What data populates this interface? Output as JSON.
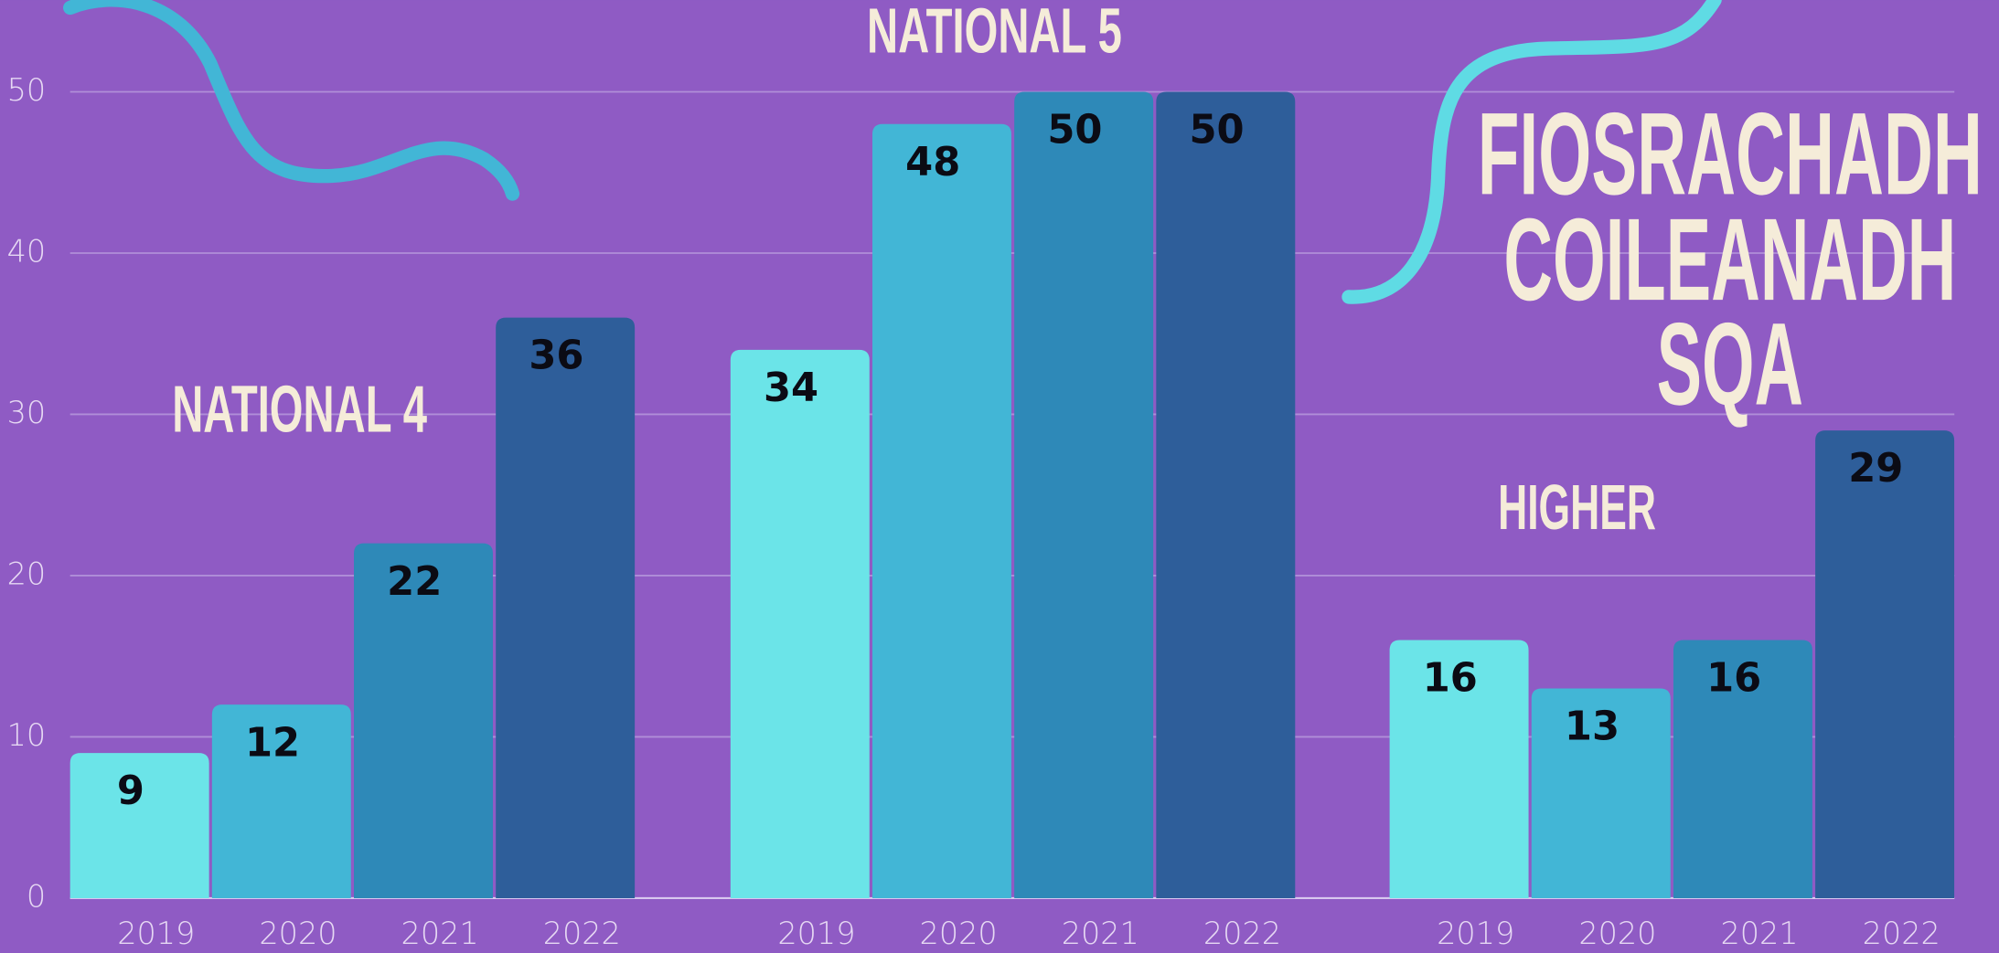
{
  "chart_data": {
    "type": "bar",
    "title": [
      "FIOSRACHADH",
      "COILEANADH",
      "SQA"
    ],
    "categories": [
      "NATIONAL 4",
      "NATIONAL 5",
      "HIGHER"
    ],
    "series": [
      {
        "name": "2019",
        "color": "#6be4e8",
        "values": [
          9,
          34,
          16
        ]
      },
      {
        "name": "2020",
        "color": "#42b6d6",
        "values": [
          12,
          48,
          13
        ]
      },
      {
        "name": "2021",
        "color": "#2e89b8",
        "values": [
          22,
          50,
          16
        ]
      },
      {
        "name": "2022",
        "color": "#2e5e9a",
        "values": [
          36,
          50,
          29
        ]
      }
    ],
    "ylim": [
      0,
      50
    ],
    "yticks": [
      0,
      10,
      20,
      30,
      40,
      50
    ],
    "grid": true
  }
}
